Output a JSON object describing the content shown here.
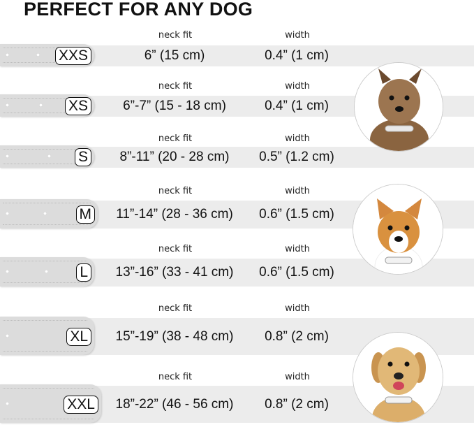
{
  "title": "PERFECT FOR ANY DOG",
  "neck_fit_label": "neck fit",
  "width_label": "width",
  "sizes": [
    {
      "size": "XXS",
      "neck_fit": "6” (15 cm)",
      "width": "0.4” (1 cm)"
    },
    {
      "size": "XS",
      "neck_fit": "6”-7” (15 - 18 cm)",
      "width": "0.4” (1 cm)"
    },
    {
      "size": "S",
      "neck_fit": "8”-11” (20 - 28 cm)",
      "width": "0.5” (1.2 cm)"
    },
    {
      "size": "M",
      "neck_fit": "11”-14” (28 - 36 cm)",
      "width": "0.6” (1.5 cm)"
    },
    {
      "size": "L",
      "neck_fit": "13”-16” (33 - 41 cm)",
      "width": "0.6” (1.5 cm)"
    },
    {
      "size": "XL",
      "neck_fit": "15”-19” (38 - 48 cm)",
      "width": "0.8” (2 cm)"
    },
    {
      "size": "XXL",
      "neck_fit": "18”-22” (46 - 56 cm)",
      "width": "0.8” (2 cm)"
    }
  ],
  "dogs": [
    "small-terrier-photo",
    "corgi-photo",
    "labrador-photo"
  ]
}
